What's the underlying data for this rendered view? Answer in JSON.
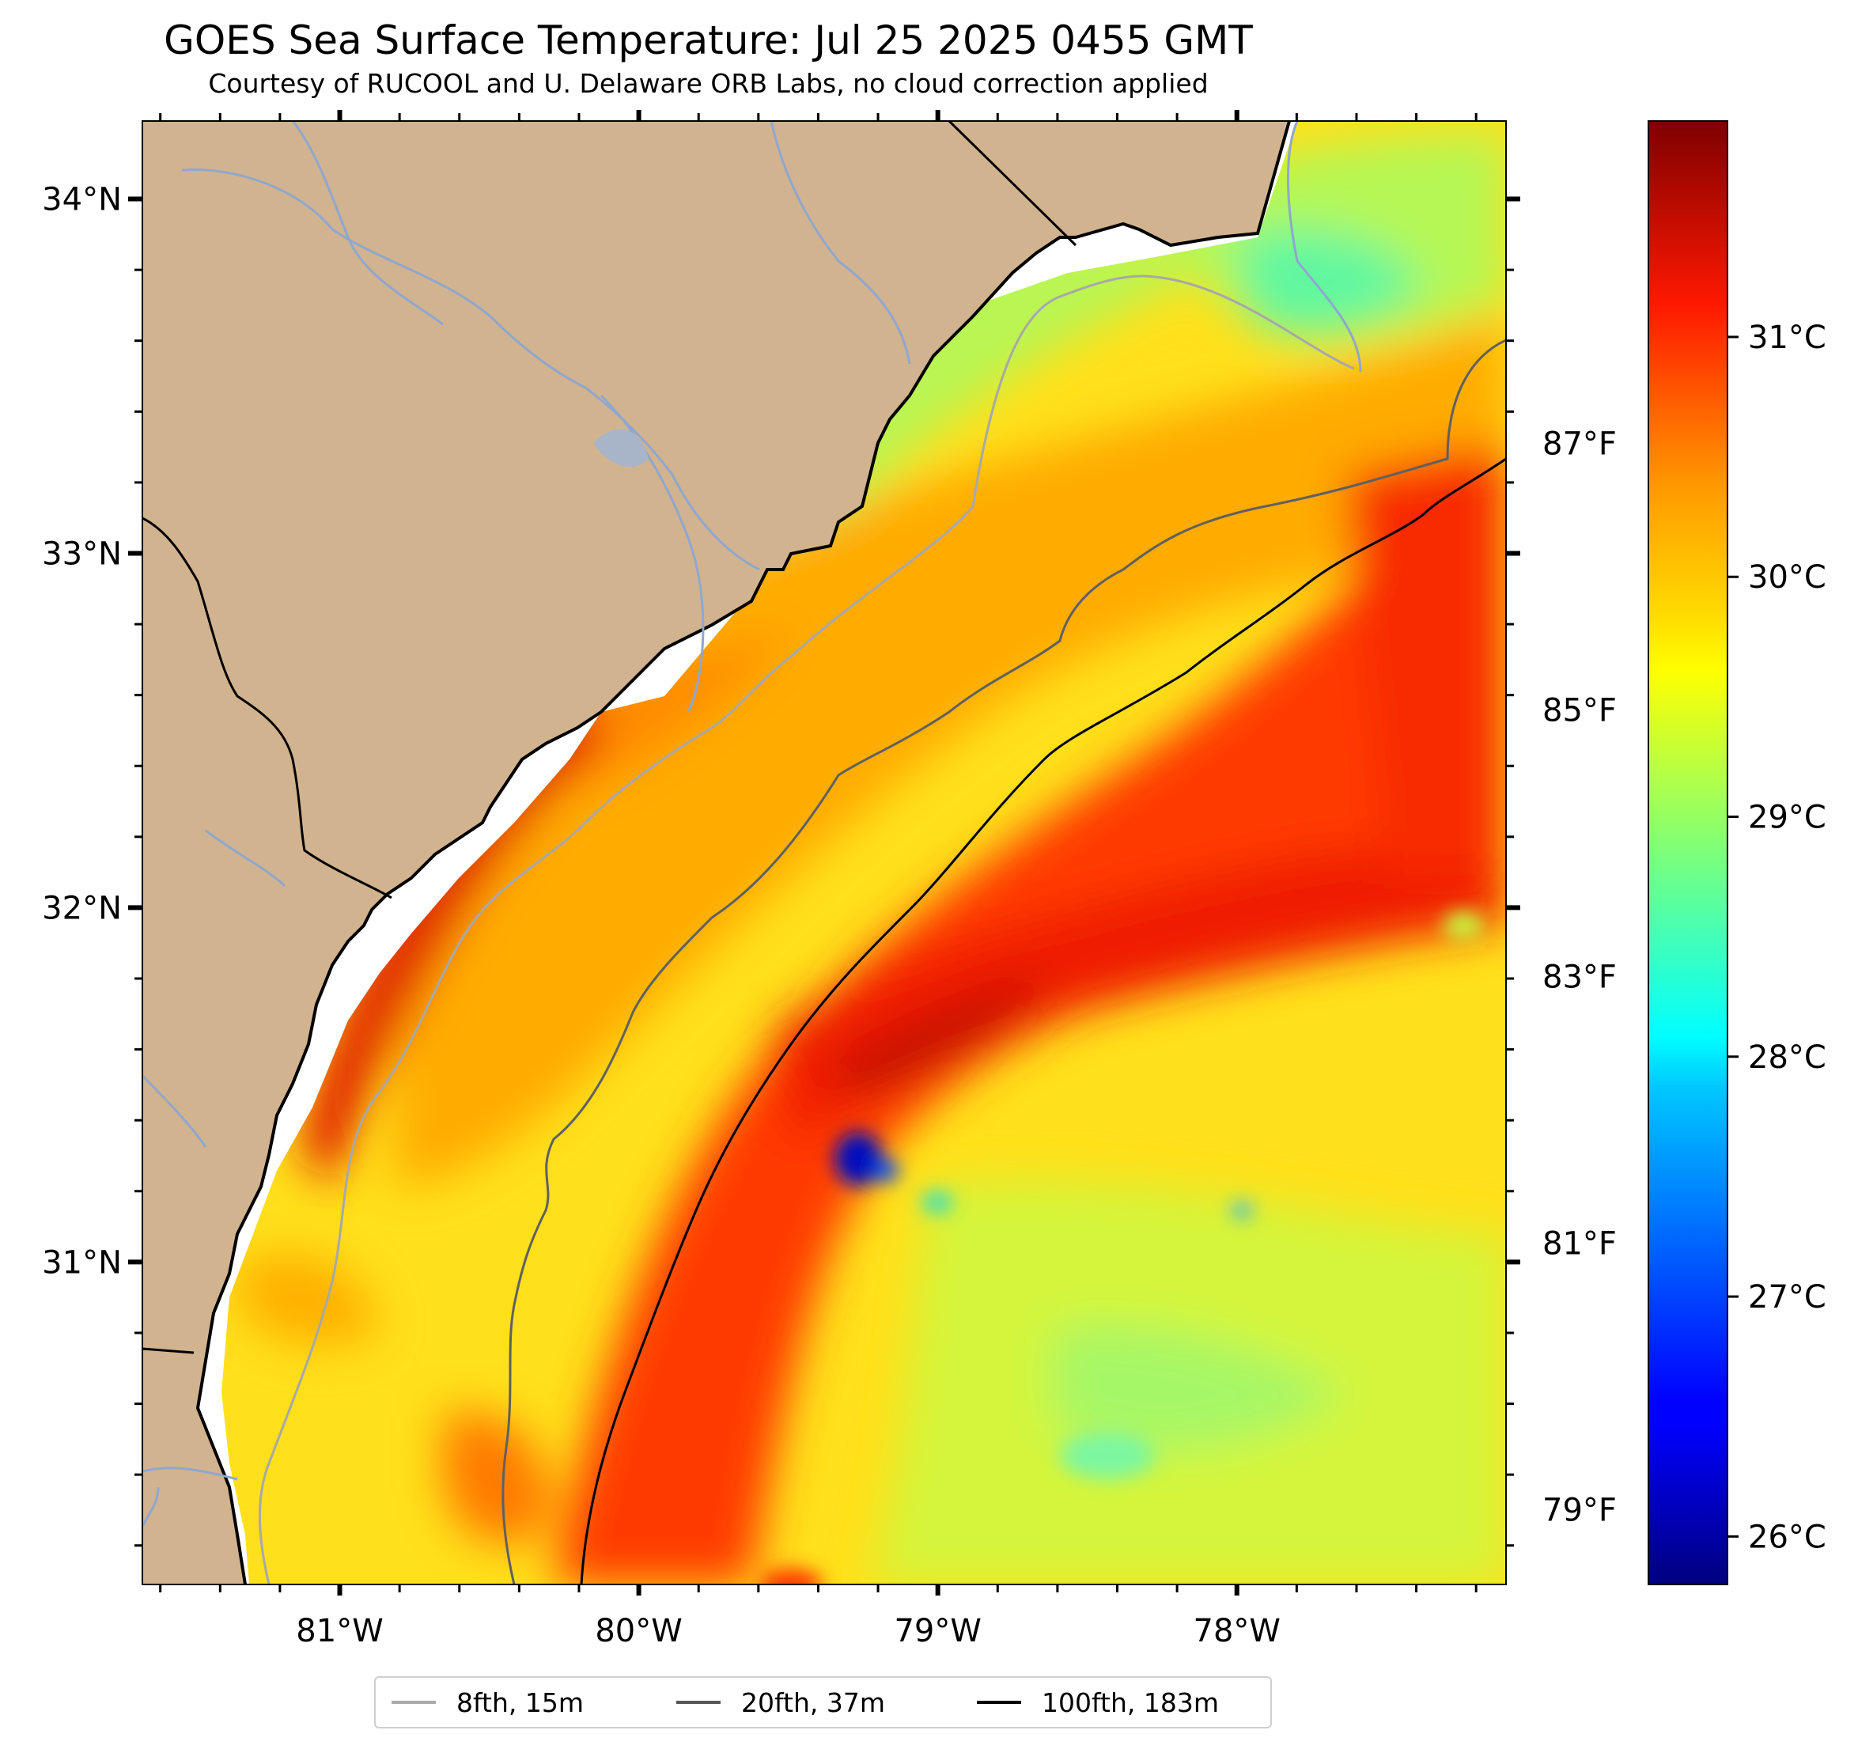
{
  "header": {
    "title": "GOES Sea Surface Temperature: Jul 25 2025 0455 GMT",
    "subtitle": "Courtesy of RUCOOL and U. Delaware ORB Labs, no cloud correction applied"
  },
  "map": {
    "lon_range": [
      -81.66,
      -77.1
    ],
    "lat_range": [
      30.09,
      34.22
    ],
    "land_color": "#d1b38f",
    "river_color": "#8fa7cf",
    "lat_ticks": [
      {
        "value": 34,
        "label": "34°N"
      },
      {
        "value": 33,
        "label": "33°N"
      },
      {
        "value": 32,
        "label": "32°N"
      },
      {
        "value": 31,
        "label": "31°N"
      }
    ],
    "lon_ticks": [
      {
        "value": -81,
        "label": "81°W"
      },
      {
        "value": -80,
        "label": "80°W"
      },
      {
        "value": -79,
        "label": "79°W"
      },
      {
        "value": -78,
        "label": "78°W"
      }
    ]
  },
  "colorbar": {
    "colormap": "jet",
    "range_c": [
      25.8,
      31.9
    ],
    "celsius_ticks": [
      {
        "value": 31,
        "label": "31°C"
      },
      {
        "value": 30,
        "label": "30°C"
      },
      {
        "value": 29,
        "label": "29°C"
      },
      {
        "value": 28,
        "label": "28°C"
      },
      {
        "value": 27,
        "label": "27°C"
      },
      {
        "value": 26,
        "label": "26°C"
      }
    ],
    "fahrenheit_ticks": [
      {
        "value": 87,
        "label": "87°F"
      },
      {
        "value": 85,
        "label": "85°F"
      },
      {
        "value": 83,
        "label": "83°F"
      },
      {
        "value": 81,
        "label": "81°F"
      },
      {
        "value": 79,
        "label": "79°F"
      }
    ]
  },
  "legend": {
    "items": [
      {
        "label": "8fth, 15m",
        "color": "#aaaaaa"
      },
      {
        "label": "20fth, 37m",
        "color": "#555555"
      },
      {
        "label": "100fth, 183m",
        "color": "#000000"
      }
    ]
  }
}
